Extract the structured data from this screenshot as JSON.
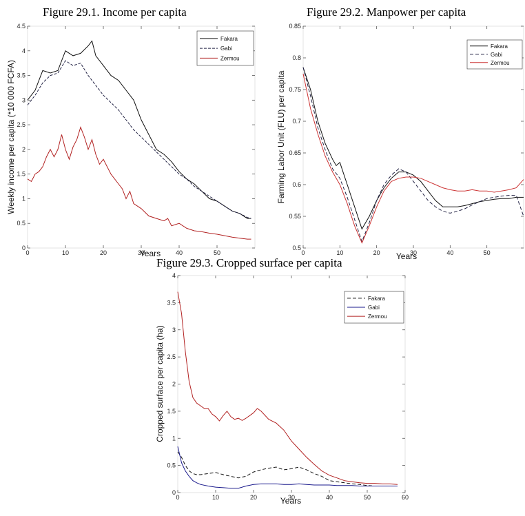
{
  "titles": {
    "fig1": "Figure 29.1. Income per capita",
    "fig2": "Figure 29.2. Manpower per capita",
    "fig3": "Figure 29.3. Cropped surface per capita"
  },
  "chart_data": [
    {
      "type": "line",
      "title": "Figure 29.1. Income per capita",
      "xlabel": "Years",
      "ylabel": "Weekly income per capita (*10 000 FCFA)",
      "xlim": [
        0,
        60
      ],
      "ylim": [
        0,
        4.5
      ],
      "xticks": [
        "0",
        "10",
        "20",
        "30",
        "40",
        "50"
      ],
      "yticks": [
        "0",
        "0.5",
        "1",
        "1.5",
        "2",
        "2.5",
        "3",
        "3.5",
        "4",
        "4.5"
      ],
      "legend_position": "top-right",
      "series": [
        {
          "name": "Fakara",
          "color": "#111111",
          "dash": "",
          "x": [
            0,
            2,
            4,
            6,
            8,
            10,
            12,
            14,
            16,
            17,
            18,
            20,
            22,
            24,
            26,
            28,
            30,
            32,
            34,
            36,
            38,
            40,
            42,
            44,
            46,
            48,
            50,
            52,
            54,
            56,
            58,
            59
          ],
          "y": [
            3.0,
            3.2,
            3.6,
            3.55,
            3.6,
            4.0,
            3.9,
            3.95,
            4.1,
            4.2,
            3.9,
            3.7,
            3.5,
            3.4,
            3.2,
            3.0,
            2.6,
            2.3,
            2.0,
            1.9,
            1.75,
            1.55,
            1.4,
            1.3,
            1.15,
            1.0,
            0.95,
            0.85,
            0.75,
            0.7,
            0.6,
            0.6
          ]
        },
        {
          "name": "Gabi",
          "color": "#222244",
          "dash": "4,2",
          "x": [
            0,
            2,
            4,
            6,
            8,
            10,
            12,
            14,
            16,
            18,
            20,
            22,
            24,
            26,
            28,
            30,
            32,
            34,
            36,
            38,
            40,
            42,
            44,
            46,
            48,
            50,
            52,
            54,
            56,
            58,
            59
          ],
          "y": [
            2.9,
            3.1,
            3.35,
            3.5,
            3.55,
            3.8,
            3.7,
            3.75,
            3.5,
            3.3,
            3.1,
            2.95,
            2.8,
            2.6,
            2.4,
            2.25,
            2.1,
            1.95,
            1.8,
            1.65,
            1.5,
            1.4,
            1.25,
            1.15,
            1.05,
            0.95,
            0.85,
            0.75,
            0.7,
            0.62,
            0.6
          ]
        },
        {
          "name": "Zermou",
          "color": "#b22222",
          "dash": "",
          "x": [
            0,
            1,
            2,
            3,
            4,
            5,
            6,
            7,
            8,
            9,
            10,
            11,
            12,
            13,
            14,
            15,
            16,
            17,
            18,
            19,
            20,
            22,
            24,
            25,
            26,
            27,
            28,
            30,
            32,
            34,
            36,
            37,
            38,
            40,
            42,
            44,
            46,
            48,
            50,
            52,
            54,
            56,
            58,
            59
          ],
          "y": [
            1.4,
            1.35,
            1.5,
            1.55,
            1.65,
            1.85,
            2.0,
            1.85,
            2.0,
            2.3,
            2.0,
            1.8,
            2.05,
            2.2,
            2.45,
            2.25,
            2.0,
            2.2,
            1.9,
            1.7,
            1.8,
            1.5,
            1.3,
            1.2,
            1.0,
            1.15,
            0.9,
            0.8,
            0.65,
            0.6,
            0.55,
            0.6,
            0.45,
            0.5,
            0.4,
            0.35,
            0.33,
            0.3,
            0.28,
            0.25,
            0.22,
            0.2,
            0.18,
            0.18
          ]
        }
      ]
    },
    {
      "type": "line",
      "title": "Figure 29.2. Manpower per capita",
      "xlabel": "Years",
      "ylabel": "Farming Labor Unit (FLU) per capita",
      "xlim": [
        0,
        60
      ],
      "ylim": [
        0.5,
        0.85
      ],
      "xticks": [
        "0",
        "10",
        "20",
        "30",
        "40",
        "50"
      ],
      "yticks": [
        "0.5",
        "0.55",
        "0.6",
        "0.65",
        "0.7",
        "0.75",
        "0.8",
        "0.85"
      ],
      "legend_position": "top-right",
      "series": [
        {
          "name": "Fakara",
          "color": "#111111",
          "dash": "",
          "x": [
            0,
            2,
            4,
            6,
            8,
            9,
            10,
            12,
            14,
            16,
            18,
            20,
            22,
            24,
            26,
            28,
            30,
            32,
            34,
            36,
            38,
            40,
            42,
            44,
            46,
            48,
            50,
            52,
            54,
            56,
            58,
            60
          ],
          "y": [
            0.785,
            0.75,
            0.7,
            0.665,
            0.64,
            0.63,
            0.635,
            0.6,
            0.565,
            0.53,
            0.55,
            0.575,
            0.595,
            0.61,
            0.62,
            0.62,
            0.615,
            0.605,
            0.59,
            0.575,
            0.565,
            0.565,
            0.565,
            0.567,
            0.57,
            0.573,
            0.575,
            0.577,
            0.578,
            0.578,
            0.58,
            0.58
          ]
        },
        {
          "name": "Gabi",
          "color": "#222244",
          "dash": "5,3",
          "x": [
            0,
            2,
            4,
            6,
            8,
            10,
            12,
            14,
            16,
            18,
            20,
            22,
            24,
            26,
            28,
            30,
            32,
            34,
            36,
            38,
            40,
            42,
            44,
            46,
            48,
            50,
            52,
            54,
            56,
            58,
            60
          ],
          "y": [
            0.785,
            0.74,
            0.69,
            0.655,
            0.625,
            0.61,
            0.58,
            0.545,
            0.51,
            0.54,
            0.575,
            0.6,
            0.615,
            0.625,
            0.62,
            0.605,
            0.59,
            0.575,
            0.565,
            0.558,
            0.555,
            0.558,
            0.562,
            0.568,
            0.573,
            0.578,
            0.58,
            0.582,
            0.583,
            0.583,
            0.55
          ]
        },
        {
          "name": "Zermou",
          "color": "#cc3333",
          "dash": "",
          "x": [
            0,
            2,
            4,
            6,
            8,
            10,
            12,
            14,
            16,
            18,
            20,
            22,
            24,
            26,
            28,
            30,
            32,
            34,
            36,
            38,
            40,
            42,
            44,
            46,
            48,
            50,
            52,
            54,
            56,
            58,
            60
          ],
          "y": [
            0.775,
            0.72,
            0.68,
            0.645,
            0.62,
            0.6,
            0.57,
            0.535,
            0.508,
            0.535,
            0.565,
            0.59,
            0.605,
            0.61,
            0.612,
            0.612,
            0.61,
            0.605,
            0.6,
            0.595,
            0.592,
            0.59,
            0.59,
            0.592,
            0.59,
            0.59,
            0.588,
            0.59,
            0.592,
            0.595,
            0.608
          ]
        }
      ]
    },
    {
      "type": "line",
      "title": "Figure 29.3. Cropped surface per capita",
      "xlabel": "Years",
      "ylabel": "Cropped surface per capita (ha)",
      "xlim": [
        0,
        60
      ],
      "ylim": [
        0,
        4
      ],
      "xticks": [
        "0",
        "10",
        "20",
        "30",
        "40",
        "50",
        "60"
      ],
      "yticks": [
        "0",
        "0.5",
        "1",
        "1.5",
        "2",
        "2.5",
        "3",
        "3.5",
        "4"
      ],
      "legend_position": "top-right",
      "series": [
        {
          "name": "Fakara",
          "color": "#111111",
          "dash": "5,3",
          "x": [
            0,
            1,
            2,
            3,
            4,
            5,
            6,
            8,
            10,
            12,
            14,
            16,
            18,
            20,
            22,
            24,
            26,
            28,
            30,
            32,
            34,
            36,
            38,
            40,
            42,
            44,
            46,
            48,
            50,
            52,
            54,
            56,
            58
          ],
          "y": [
            0.75,
            0.65,
            0.5,
            0.4,
            0.35,
            0.33,
            0.33,
            0.35,
            0.37,
            0.33,
            0.3,
            0.27,
            0.3,
            0.38,
            0.42,
            0.45,
            0.47,
            0.42,
            0.44,
            0.47,
            0.42,
            0.35,
            0.3,
            0.22,
            0.2,
            0.18,
            0.16,
            0.15,
            0.13,
            0.12,
            0.12,
            0.12,
            0.12
          ]
        },
        {
          "name": "Gabi",
          "color": "#1a1a8c",
          "dash": "",
          "x": [
            0,
            1,
            2,
            3,
            4,
            5,
            6,
            8,
            10,
            12,
            14,
            16,
            18,
            20,
            22,
            24,
            26,
            28,
            30,
            32,
            34,
            36,
            38,
            40,
            42,
            44,
            46,
            48,
            50,
            52,
            54,
            56,
            58
          ],
          "y": [
            0.85,
            0.55,
            0.4,
            0.3,
            0.22,
            0.18,
            0.15,
            0.12,
            0.1,
            0.09,
            0.08,
            0.08,
            0.12,
            0.15,
            0.16,
            0.16,
            0.16,
            0.15,
            0.15,
            0.16,
            0.15,
            0.14,
            0.14,
            0.14,
            0.13,
            0.13,
            0.13,
            0.12,
            0.12,
            0.12,
            0.12,
            0.12,
            0.12
          ]
        },
        {
          "name": "Zermou",
          "color": "#b22222",
          "dash": "",
          "x": [
            0,
            1,
            2,
            3,
            4,
            5,
            6,
            7,
            8,
            9,
            10,
            11,
            12,
            13,
            14,
            15,
            16,
            17,
            18,
            19,
            20,
            21,
            22,
            24,
            26,
            28,
            30,
            32,
            34,
            36,
            38,
            40,
            42,
            44,
            46,
            48,
            50,
            52,
            54,
            56,
            58
          ],
          "y": [
            3.7,
            3.3,
            2.6,
            2.05,
            1.75,
            1.65,
            1.6,
            1.55,
            1.55,
            1.45,
            1.4,
            1.32,
            1.42,
            1.5,
            1.4,
            1.35,
            1.37,
            1.33,
            1.37,
            1.42,
            1.47,
            1.55,
            1.5,
            1.35,
            1.28,
            1.15,
            0.95,
            0.8,
            0.65,
            0.52,
            0.4,
            0.32,
            0.27,
            0.22,
            0.2,
            0.18,
            0.17,
            0.17,
            0.16,
            0.16,
            0.15
          ]
        }
      ]
    }
  ]
}
